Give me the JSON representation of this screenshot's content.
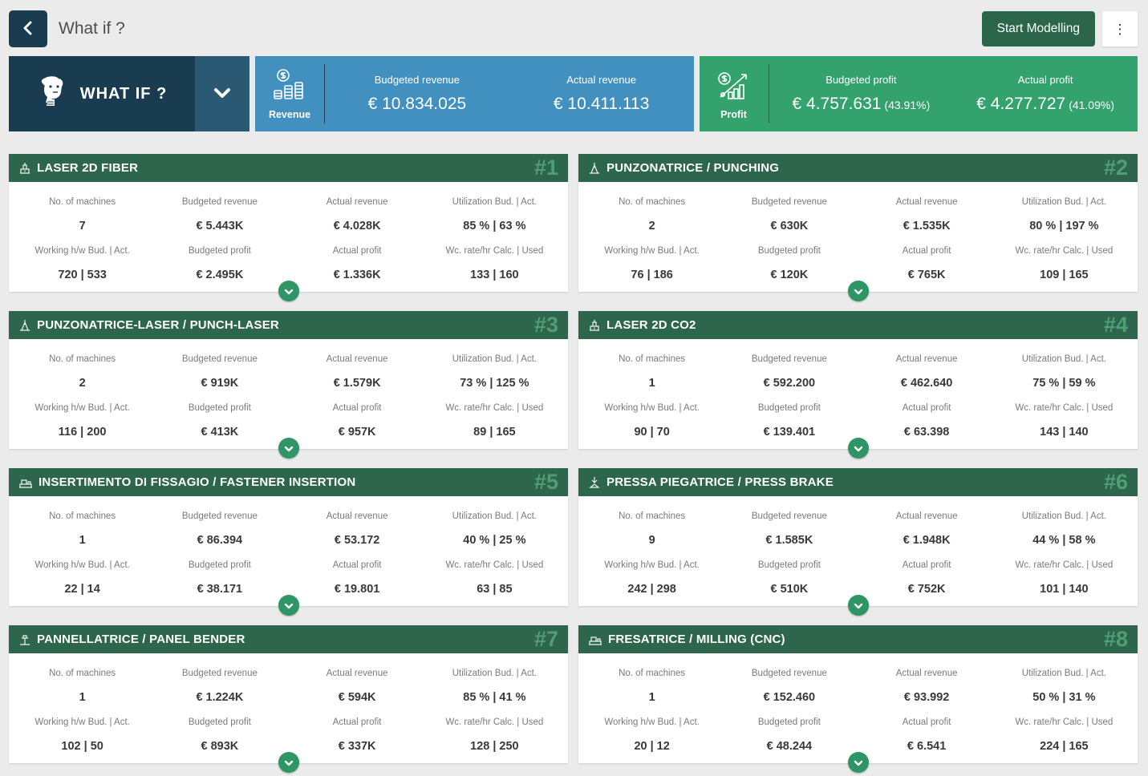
{
  "topbar": {
    "title": "What if ?",
    "start_modelling_label": "Start Modelling"
  },
  "summary": {
    "whatif": {
      "label": "WHAT IF ?"
    },
    "revenue": {
      "label": "Revenue",
      "metrics": [
        {
          "label": "Budgeted revenue",
          "value": "€ 10.834.025",
          "pct": ""
        },
        {
          "label": "Actual revenue",
          "value": "€ 10.411.113",
          "pct": ""
        }
      ]
    },
    "profit": {
      "label": "Profit",
      "metrics": [
        {
          "label": "Budgeted profit",
          "value": "€ 4.757.631",
          "pct": "(43.91%)"
        },
        {
          "label": "Actual profit",
          "value": "€ 4.277.727",
          "pct": "(41.09%)"
        }
      ]
    }
  },
  "card_labels": {
    "no_machines": "No. of machines",
    "budgeted_revenue": "Budgeted revenue",
    "actual_revenue": "Actual revenue",
    "utilization": "Utilization Bud. | Act.",
    "working_hw": "Working h/w Bud. | Act.",
    "budgeted_profit": "Budgeted profit",
    "actual_profit": "Actual profit",
    "wc_rate": "Wc. rate/hr Calc. | Used"
  },
  "cards": [
    {
      "rank": "#1",
      "title": "LASER 2D FIBER",
      "icon": "laser-2d-icon",
      "no_machines": "7",
      "budgeted_revenue": "€ 5.443K",
      "actual_revenue": "€ 4.028K",
      "utilization": "85 % | 63 %",
      "working_hw": "720 | 533",
      "budgeted_profit": "€ 2.495K",
      "actual_profit": "€ 1.336K",
      "wc_rate": "133 | 160"
    },
    {
      "rank": "#2",
      "title": "PUNZONATRICE / PUNCHING",
      "icon": "punching-icon",
      "no_machines": "2",
      "budgeted_revenue": "€ 630K",
      "actual_revenue": "€ 1.535K",
      "utilization": "80 % | 197 %",
      "working_hw": "76 | 186",
      "budgeted_profit": "€ 120K",
      "actual_profit": "€ 765K",
      "wc_rate": "109 | 165"
    },
    {
      "rank": "#3",
      "title": "PUNZONATRICE-LASER / PUNCH-LASER",
      "icon": "punch-laser-icon",
      "no_machines": "2",
      "budgeted_revenue": "€ 919K",
      "actual_revenue": "€ 1.579K",
      "utilization": "73 % | 125 %",
      "working_hw": "116 | 200",
      "budgeted_profit": "€ 413K",
      "actual_profit": "€ 957K",
      "wc_rate": "89 | 165"
    },
    {
      "rank": "#4",
      "title": "LASER 2D CO2",
      "icon": "laser-co2-icon",
      "no_machines": "1",
      "budgeted_revenue": "€ 592.200",
      "actual_revenue": "€ 462.640",
      "utilization": "75 % | 59 %",
      "working_hw": "90 | 70",
      "budgeted_profit": "€ 139.401",
      "actual_profit": "€ 63.398",
      "wc_rate": "143 | 140"
    },
    {
      "rank": "#5",
      "title": "INSERTIMENTO DI FISSAGIO / FASTENER INSERTION",
      "icon": "fastener-insertion-icon",
      "no_machines": "1",
      "budgeted_revenue": "€ 86.394",
      "actual_revenue": "€ 53.172",
      "utilization": "40 % | 25 %",
      "working_hw": "22 | 14",
      "budgeted_profit": "€ 38.171",
      "actual_profit": "€ 19.801",
      "wc_rate": "63 | 85"
    },
    {
      "rank": "#6",
      "title": "PRESSA PIEGATRICE / PRESS BRAKE",
      "icon": "press-brake-icon",
      "no_machines": "9",
      "budgeted_revenue": "€ 1.585K",
      "actual_revenue": "€ 1.948K",
      "utilization": "44 % | 58 %",
      "working_hw": "242 | 298",
      "budgeted_profit": "€ 510K",
      "actual_profit": "€ 752K",
      "wc_rate": "101 | 140"
    },
    {
      "rank": "#7",
      "title": "PANNELLATRICE / PANEL BENDER",
      "icon": "panel-bender-icon",
      "no_machines": "1",
      "budgeted_revenue": "€ 1.224K",
      "actual_revenue": "€ 594K",
      "utilization": "85 % | 41 %",
      "working_hw": "102 | 50",
      "budgeted_profit": "€ 893K",
      "actual_profit": "€ 337K",
      "wc_rate": "128 | 250"
    },
    {
      "rank": "#8",
      "title": "FRESATRICE / MILLING (CNC)",
      "icon": "milling-icon",
      "no_machines": "1",
      "budgeted_revenue": "€ 152.460",
      "actual_revenue": "€ 93.992",
      "utilization": "50 % | 31 %",
      "working_hw": "20 | 12",
      "budgeted_profit": "€ 48.244",
      "actual_profit": "€ 6.541",
      "wc_rate": "224 | 165"
    }
  ],
  "colors": {
    "page_bg": "#ebebeb",
    "navy": "#1a3c51",
    "navy_light": "#2b5873",
    "revenue_blue": "#4190bf",
    "profit_green": "#33a26c",
    "header_green": "#2d664c",
    "rank_green": "#4f9e74",
    "expand_green": "#2e9564",
    "button_green": "#2b664a"
  }
}
